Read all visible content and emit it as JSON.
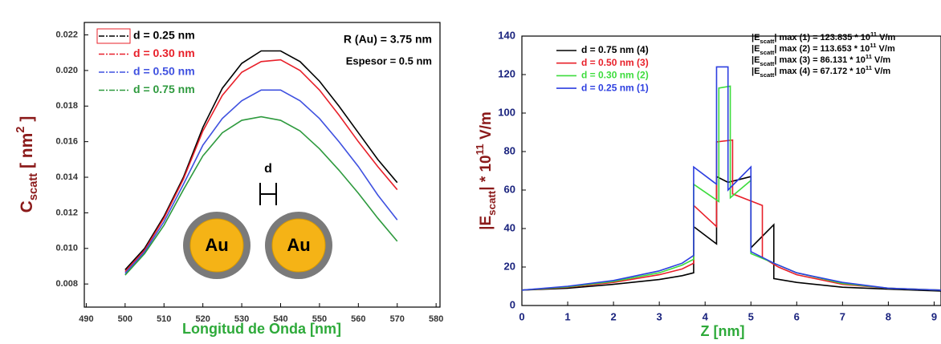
{
  "chart_data": [
    {
      "type": "line",
      "xlabel": "Longitud de Onda [nm]",
      "ylabel": [
        "C",
        "scatt",
        " [ nm",
        "2",
        " ]"
      ],
      "annotations": [
        "R (Au) = 3.75 nm",
        "Espesor = 0.5 nm",
        "d",
        "Au",
        "Au"
      ],
      "xlim": [
        489.5,
        581
      ],
      "ylim": [
        0.0067,
        0.0227
      ],
      "xticks": [
        490,
        500,
        510,
        520,
        530,
        540,
        550,
        560,
        570,
        580
      ],
      "yticks": [
        0.008,
        {
          "value": 0.01,
          "label": "0.010"
        },
        0.012,
        0.014,
        0.016,
        0.018,
        {
          "value": 0.02,
          "label": "0.020"
        },
        0.022
      ],
      "x": [
        500,
        505,
        510,
        515,
        520,
        525,
        530,
        535,
        540,
        545,
        550,
        555,
        560,
        565,
        570
      ],
      "legend": "upper left",
      "series": [
        {
          "name": "d = 0.25 nm",
          "color": "#000000",
          "values": [
            0.0088,
            0.01,
            0.0118,
            0.014,
            0.0168,
            0.019,
            0.0204,
            0.0211,
            0.0211,
            0.0205,
            0.0194,
            0.018,
            0.0165,
            0.015,
            0.0137
          ]
        },
        {
          "name": "d = 0.30 nm",
          "color": "#e8202a",
          "values": [
            0.0087,
            0.0099,
            0.0117,
            0.0139,
            0.0166,
            0.0186,
            0.0199,
            0.0205,
            0.0206,
            0.02,
            0.0189,
            0.0175,
            0.016,
            0.0146,
            0.0133
          ]
        },
        {
          "name": "d = 0.50 nm",
          "color": "#3f51e0",
          "values": [
            0.0086,
            0.0098,
            0.0115,
            0.0136,
            0.0158,
            0.0173,
            0.0183,
            0.0189,
            0.0189,
            0.0183,
            0.0173,
            0.016,
            0.0146,
            0.013,
            0.0116
          ]
        },
        {
          "name": "d = 0.75 nm",
          "color": "#2e9a3e",
          "values": [
            0.0085,
            0.0097,
            0.0113,
            0.0133,
            0.0152,
            0.0165,
            0.0172,
            0.0174,
            0.0172,
            0.0166,
            0.0156,
            0.0144,
            0.0131,
            0.0117,
            0.0104
          ]
        }
      ]
    },
    {
      "type": "line",
      "xlabel": "Z [nm]",
      "ylabel": [
        "|E",
        "scatt",
        "| * 10",
        "11",
        " V/m"
      ],
      "annotations": [
        [
          "|E",
          "scatt",
          "| max (1) = 123.835 * 10",
          "11",
          " V/m"
        ],
        [
          "|E",
          "scatt",
          "| max (2) = 113.653 * 10",
          "11",
          " V/m"
        ],
        [
          "|E",
          "scatt",
          "| max (3) = 86.131 * 10",
          "11",
          " V/m"
        ],
        [
          "|E",
          "scatt",
          "| max (4) = 67.172 * 10",
          "11",
          " V/m"
        ]
      ],
      "xlim": [
        0,
        9.15
      ],
      "ylim": [
        0,
        140
      ],
      "xticks": [
        0,
        1,
        2,
        3,
        4,
        5,
        6,
        7,
        8,
        9
      ],
      "yticks": [
        0,
        20,
        40,
        60,
        80,
        100,
        120,
        140
      ],
      "legend": "upper left",
      "series": [
        {
          "name": "d = 0.75 nm (4)",
          "color": "#000000",
          "x": [
            0,
            1,
            2,
            3,
            3.5,
            3.75,
            3.75,
            4.25,
            4.25,
            4.5,
            5.0,
            5.0,
            5.5,
            5.5,
            6,
            7,
            8,
            9.15
          ],
          "values": [
            8,
            9,
            11,
            13.5,
            15.5,
            17,
            41,
            32,
            67,
            64,
            67,
            30,
            42,
            14,
            12,
            9.5,
            8.5,
            7.5
          ]
        },
        {
          "name": "d = 0.50 nm (3)",
          "color": "#e8202a",
          "x": [
            0,
            1,
            2,
            3,
            3.5,
            3.75,
            3.75,
            4.25,
            4.25,
            4.6,
            4.6,
            5.25,
            5.25,
            5.6,
            6,
            7,
            8,
            9.15
          ],
          "values": [
            8,
            9.5,
            12,
            16,
            19,
            22,
            52,
            41,
            85,
            86,
            58,
            52,
            25,
            20,
            16,
            11,
            9,
            8
          ]
        },
        {
          "name": "d = 0.30 nm (2)",
          "color": "#3ddc3d",
          "x": [
            0,
            1,
            2,
            3,
            3.5,
            3.75,
            3.75,
            4.3,
            4.3,
            4.55,
            4.55,
            5.0,
            5.0,
            5.5,
            6,
            7,
            8,
            9.15
          ],
          "values": [
            8,
            9.7,
            12.5,
            17,
            21,
            24,
            63,
            54,
            113,
            114,
            56,
            65,
            27,
            22,
            17,
            11.5,
            9,
            8
          ]
        },
        {
          "name": "d = 0.25 nm (1)",
          "color": "#2d3fe0",
          "x": [
            0,
            1,
            2,
            3,
            3.5,
            3.75,
            3.75,
            4.25,
            4.25,
            4.5,
            4.5,
            5.0,
            5.0,
            5.5,
            6,
            7,
            8,
            9.15
          ],
          "values": [
            8,
            10,
            13,
            18,
            22,
            26,
            72,
            63,
            124,
            124,
            60,
            72,
            28,
            22,
            17,
            12,
            9,
            8
          ]
        }
      ]
    }
  ]
}
